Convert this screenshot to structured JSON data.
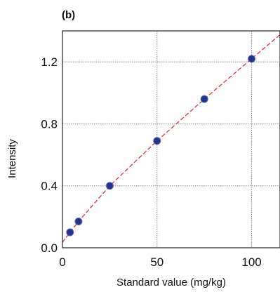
{
  "panel_label": "(b)",
  "chart_data": {
    "type": "scatter",
    "xlabel": "Standard value (mg/kg)",
    "ylabel": "Intensity",
    "xlim": [
      0,
      115
    ],
    "ylim": [
      0,
      1.4
    ],
    "x_ticks": [
      0,
      50,
      100
    ],
    "x_tick_labels": [
      "0",
      "50",
      "100"
    ],
    "y_ticks": [
      0,
      0.4,
      0.8,
      1.2
    ],
    "y_tick_labels": [
      "0.0",
      "0.4",
      "0.8",
      "1.2"
    ],
    "grid": true,
    "series": [
      {
        "x": [
          4,
          8.5,
          25,
          50,
          75,
          100
        ],
        "y": [
          0.1,
          0.17,
          0.4,
          0.69,
          0.96,
          1.22
        ]
      }
    ],
    "fit_line": {
      "x": [
        0,
        4,
        8.5,
        25,
        50,
        75,
        100,
        115
      ],
      "y": [
        0.035,
        0.1,
        0.17,
        0.4,
        0.69,
        0.96,
        1.22,
        1.375
      ]
    },
    "colors": {
      "point_fill": "#22338a",
      "fit_line": "#e0303a",
      "grid": "#8a8a8a"
    }
  }
}
